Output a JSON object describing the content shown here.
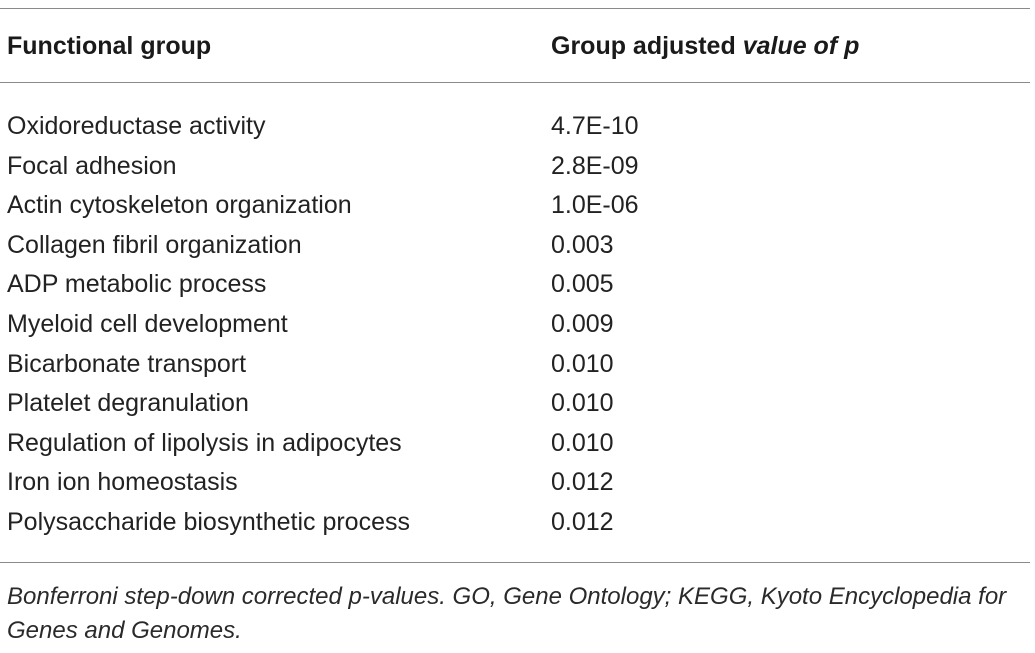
{
  "table": {
    "header": {
      "col_group": "Functional group",
      "col_p_prefix": "Group adjusted ",
      "col_p_italic": "value of p"
    },
    "rows": [
      {
        "group": "Oxidoreductase activity",
        "p": "4.7E-10"
      },
      {
        "group": "Focal adhesion",
        "p": "2.8E-09"
      },
      {
        "group": "Actin cytoskeleton organization",
        "p": "1.0E-06"
      },
      {
        "group": "Collagen fibril organization",
        "p": "0.003"
      },
      {
        "group": "ADP metabolic process",
        "p": "0.005"
      },
      {
        "group": "Myeloid cell development",
        "p": "0.009"
      },
      {
        "group": "Bicarbonate transport",
        "p": "0.010"
      },
      {
        "group": "Platelet degranulation",
        "p": "0.010"
      },
      {
        "group": "Regulation of lipolysis in adipocytes",
        "p": "0.010"
      },
      {
        "group": "Iron ion homeostasis",
        "p": "0.012"
      },
      {
        "group": "Polysaccharide biosynthetic process",
        "p": "0.012"
      }
    ],
    "footnote": "Bonferroni step-down corrected p-values. GO, Gene Ontology; KEGG, Kyoto Encyclopedia for Genes and Genomes."
  }
}
